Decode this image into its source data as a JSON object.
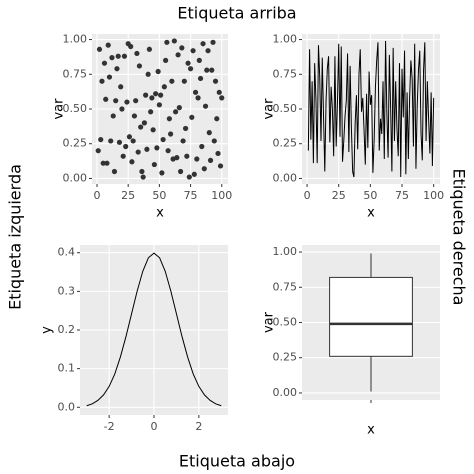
{
  "labels": {
    "top": "Etiqueta arriba",
    "bottom": "Etiqueta abajo",
    "left": "Etiqueta izquierda",
    "right": "Etiqueta derecha"
  },
  "chart_data": [
    {
      "type": "scatter",
      "xlabel": "x",
      "ylabel": "var",
      "color": "#333333",
      "grid": true,
      "xlim": [
        -4,
        105
      ],
      "xticks": [
        0,
        25,
        50,
        75,
        100
      ],
      "ylim": [
        -0.04,
        1.04
      ],
      "yticks": [
        {
          "value": 0,
          "label": "0.00"
        },
        {
          "value": 0.25,
          "label": "0.25"
        },
        {
          "value": 0.5,
          "label": "0.50"
        },
        {
          "value": 0.75,
          "label": "0.75"
        },
        {
          "value": 1,
          "label": "1.00"
        }
      ],
      "x": [
        1,
        2,
        3,
        4,
        5,
        6,
        7,
        8,
        9,
        10,
        11,
        12,
        13,
        14,
        15,
        16,
        17,
        18,
        19,
        20,
        21,
        22,
        23,
        24,
        25,
        26,
        27,
        28,
        29,
        30,
        31,
        32,
        33,
        34,
        35,
        36,
        37,
        38,
        39,
        40,
        41,
        42,
        43,
        44,
        45,
        46,
        47,
        48,
        49,
        50,
        51,
        52,
        53,
        54,
        55,
        56,
        57,
        58,
        59,
        60,
        61,
        62,
        63,
        64,
        65,
        66,
        67,
        68,
        69,
        70,
        71,
        72,
        73,
        74,
        75,
        76,
        77,
        78,
        79,
        80,
        81,
        82,
        83,
        84,
        85,
        86,
        87,
        88,
        89,
        90,
        91,
        92,
        93,
        94,
        95,
        96,
        97,
        98,
        99,
        100
      ],
      "values": [
        0.2,
        0.93,
        0.28,
        0.7,
        0.11,
        0.83,
        0.57,
        0.11,
        0.96,
        0.73,
        0.27,
        0.87,
        0.45,
        0.05,
        0.56,
        0.79,
        0.88,
        0.26,
        0.66,
        0.5,
        0.16,
        0.88,
        0.23,
        0.55,
        0.97,
        0.3,
        0.95,
        0.12,
        0.27,
        0.45,
        0.56,
        0.9,
        0.19,
        0.81,
        0.37,
        0.05,
        0.01,
        0.4,
        0.6,
        0.21,
        0.75,
        0.93,
        0.48,
        0.58,
        0.35,
        0.1,
        0.61,
        0.22,
        0.77,
        0.53,
        0.6,
        0.04,
        0.28,
        0.66,
        0.85,
        0.98,
        0.2,
        0.43,
        0.32,
        0.7,
        0.14,
        0.99,
        0.48,
        0.15,
        0.89,
        0.51,
        0.05,
        0.94,
        0.27,
        0.7,
        0.36,
        0.16,
        0.83,
        0.01,
        0.79,
        0.44,
        0.92,
        0.03,
        0.62,
        0.14,
        0.58,
        0.85,
        0.72,
        0.23,
        0.97,
        0.07,
        0.52,
        0.78,
        0.92,
        0.33,
        0.13,
        0.78,
        0.98,
        0.27,
        0.7,
        0.43,
        0.18,
        0.62,
        0.09,
        0.58
      ]
    },
    {
      "type": "line",
      "xlabel": "x",
      "ylabel": "var",
      "color": "#000000",
      "grid": true,
      "xlim": [
        -4,
        105
      ],
      "xticks": [
        0,
        25,
        50,
        75,
        100
      ],
      "ylim": [
        -0.04,
        1.04
      ],
      "yticks": [
        {
          "value": 0,
          "label": "0.00"
        },
        {
          "value": 0.25,
          "label": "0.25"
        },
        {
          "value": 0.5,
          "label": "0.50"
        },
        {
          "value": 0.75,
          "label": "0.75"
        },
        {
          "value": 1,
          "label": "1.00"
        }
      ],
      "x": [
        1,
        2,
        3,
        4,
        5,
        6,
        7,
        8,
        9,
        10,
        11,
        12,
        13,
        14,
        15,
        16,
        17,
        18,
        19,
        20,
        21,
        22,
        23,
        24,
        25,
        26,
        27,
        28,
        29,
        30,
        31,
        32,
        33,
        34,
        35,
        36,
        37,
        38,
        39,
        40,
        41,
        42,
        43,
        44,
        45,
        46,
        47,
        48,
        49,
        50,
        51,
        52,
        53,
        54,
        55,
        56,
        57,
        58,
        59,
        60,
        61,
        62,
        63,
        64,
        65,
        66,
        67,
        68,
        69,
        70,
        71,
        72,
        73,
        74,
        75,
        76,
        77,
        78,
        79,
        80,
        81,
        82,
        83,
        84,
        85,
        86,
        87,
        88,
        89,
        90,
        91,
        92,
        93,
        94,
        95,
        96,
        97,
        98,
        99,
        100
      ],
      "values": [
        0.2,
        0.93,
        0.28,
        0.7,
        0.11,
        0.83,
        0.57,
        0.11,
        0.96,
        0.73,
        0.27,
        0.87,
        0.45,
        0.05,
        0.56,
        0.79,
        0.88,
        0.26,
        0.66,
        0.5,
        0.16,
        0.88,
        0.23,
        0.55,
        0.97,
        0.3,
        0.95,
        0.12,
        0.27,
        0.45,
        0.56,
        0.9,
        0.19,
        0.81,
        0.37,
        0.05,
        0.01,
        0.4,
        0.6,
        0.21,
        0.75,
        0.93,
        0.48,
        0.58,
        0.35,
        0.1,
        0.61,
        0.22,
        0.77,
        0.53,
        0.6,
        0.04,
        0.28,
        0.66,
        0.85,
        0.98,
        0.2,
        0.43,
        0.32,
        0.7,
        0.14,
        0.99,
        0.48,
        0.15,
        0.89,
        0.51,
        0.05,
        0.94,
        0.27,
        0.7,
        0.36,
        0.16,
        0.83,
        0.01,
        0.79,
        0.44,
        0.92,
        0.03,
        0.62,
        0.14,
        0.58,
        0.85,
        0.72,
        0.23,
        0.97,
        0.07,
        0.52,
        0.78,
        0.92,
        0.33,
        0.13,
        0.78,
        0.98,
        0.27,
        0.7,
        0.43,
        0.18,
        0.62,
        0.09,
        0.58
      ]
    },
    {
      "type": "line",
      "xlabel": "",
      "ylabel": "y",
      "color": "#000000",
      "grid": true,
      "xlim": [
        -3.3,
        3.3
      ],
      "xticks": [
        -2,
        0,
        2
      ],
      "ylim": [
        -0.02,
        0.42
      ],
      "yticks": [
        {
          "value": 0,
          "label": "0.0"
        },
        0.1,
        0.2,
        0.3,
        0.4
      ],
      "x": [
        -3,
        -2.75,
        -2.5,
        -2.25,
        -2,
        -1.75,
        -1.5,
        -1.25,
        -1,
        -0.75,
        -0.5,
        -0.25,
        0,
        0.25,
        0.5,
        0.75,
        1,
        1.25,
        1.5,
        1.75,
        2,
        2.25,
        2.5,
        2.75,
        3
      ],
      "values": [
        0.004,
        0.009,
        0.018,
        0.032,
        0.054,
        0.086,
        0.13,
        0.183,
        0.242,
        0.301,
        0.352,
        0.387,
        0.399,
        0.387,
        0.352,
        0.301,
        0.242,
        0.183,
        0.13,
        0.086,
        0.054,
        0.032,
        0.018,
        0.009,
        0.004
      ]
    },
    {
      "type": "box",
      "xlabel": "x",
      "ylabel": "var",
      "color": "#333333",
      "grid": true,
      "categories": [
        null
      ],
      "ylim": [
        -0.05,
        1.05
      ],
      "yticks": [
        {
          "value": 0,
          "label": "0.00"
        },
        {
          "value": 0.25,
          "label": "0.25"
        },
        {
          "value": 0.5,
          "label": "0.50"
        },
        {
          "value": 0.75,
          "label": "0.75"
        },
        {
          "value": 1,
          "label": "1.00"
        }
      ],
      "boxes": [
        {
          "low": 0.01,
          "q1": 0.26,
          "median": 0.49,
          "q3": 0.82,
          "high": 0.99
        }
      ]
    }
  ]
}
